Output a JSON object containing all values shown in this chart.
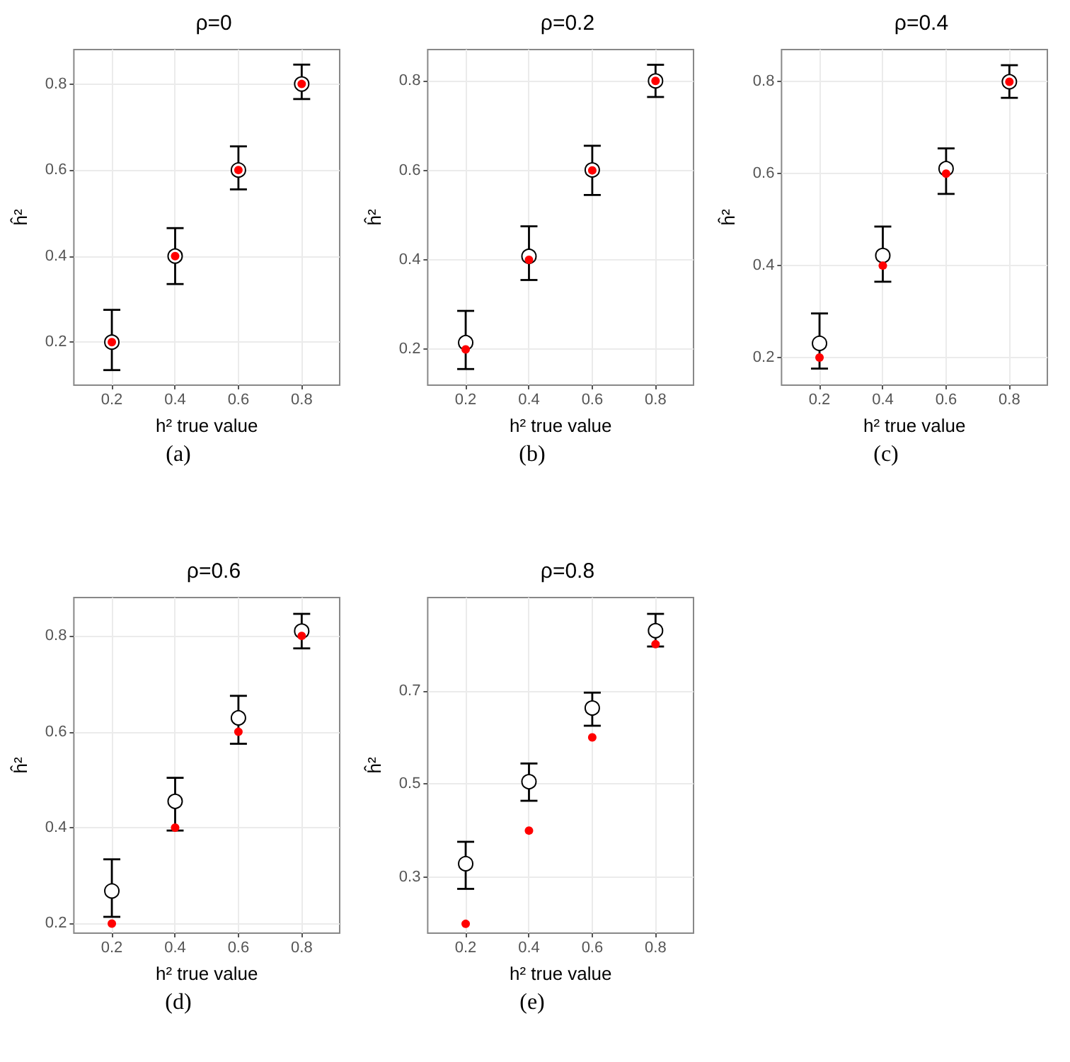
{
  "chart_data": [
    {
      "type": "scatter",
      "title": "ρ=0",
      "xlabel": "h² true value",
      "ylabel": "ĥ²",
      "annotations": [
        "(a)"
      ],
      "xlim": [
        0.08,
        0.92
      ],
      "xticks": [
        0.2,
        0.4,
        0.6,
        0.8
      ],
      "ylim": [
        0.1,
        0.88
      ],
      "yticks": [
        0.2,
        0.4,
        0.6,
        0.8
      ],
      "grid": true,
      "marker": "circle",
      "series": [
        {
          "color": "#ffffff",
          "x": [
            0.2,
            0.4,
            0.6,
            0.8
          ],
          "values": [
            0.2,
            0.4,
            0.6,
            0.8
          ],
          "errors": [
            [
              0.135,
              0.275
            ],
            [
              0.335,
              0.465
            ],
            [
              0.555,
              0.655
            ],
            [
              0.765,
              0.845
            ]
          ]
        },
        {
          "color": "#ff0000",
          "x": [
            0.2,
            0.4,
            0.6,
            0.8
          ],
          "values": [
            0.2,
            0.4,
            0.6,
            0.8
          ]
        }
      ]
    },
    {
      "type": "scatter",
      "title": "ρ=0.2",
      "xlabel": "h² true value",
      "ylabel": "ĥ²",
      "annotations": [
        "(b)"
      ],
      "xlim": [
        0.08,
        0.92
      ],
      "xticks": [
        0.2,
        0.4,
        0.6,
        0.8
      ],
      "ylim": [
        0.12,
        0.87
      ],
      "yticks": [
        0.2,
        0.4,
        0.6,
        0.8
      ],
      "grid": true,
      "marker": "circle",
      "series": [
        {
          "color": "#ffffff",
          "x": [
            0.2,
            0.4,
            0.6,
            0.8
          ],
          "values": [
            0.215,
            0.408,
            0.601,
            0.8
          ],
          "errors": [
            [
              0.156,
              0.286
            ],
            [
              0.355,
              0.475
            ],
            [
              0.545,
              0.655
            ],
            [
              0.764,
              0.836
            ]
          ]
        },
        {
          "color": "#ff0000",
          "x": [
            0.2,
            0.4,
            0.6,
            0.8
          ],
          "values": [
            0.2,
            0.4,
            0.6,
            0.8
          ]
        }
      ]
    },
    {
      "type": "scatter",
      "title": "ρ=0.4",
      "xlabel": "h² true value",
      "ylabel": "ĥ²",
      "annotations": [
        "(c)"
      ],
      "xlim": [
        0.08,
        0.92
      ],
      "xticks": [
        0.2,
        0.4,
        0.6,
        0.8
      ],
      "ylim": [
        0.14,
        0.87
      ],
      "yticks": [
        0.2,
        0.4,
        0.6,
        0.8
      ],
      "grid": true,
      "marker": "circle",
      "series": [
        {
          "color": "#ffffff",
          "x": [
            0.2,
            0.4,
            0.6,
            0.8
          ],
          "values": [
            0.231,
            0.422,
            0.611,
            0.8
          ],
          "errors": [
            [
              0.176,
              0.296
            ],
            [
              0.365,
              0.485
            ],
            [
              0.556,
              0.655
            ],
            [
              0.765,
              0.836
            ]
          ]
        },
        {
          "color": "#ff0000",
          "x": [
            0.2,
            0.4,
            0.6,
            0.8
          ],
          "values": [
            0.2,
            0.4,
            0.6,
            0.8
          ]
        }
      ]
    },
    {
      "type": "scatter",
      "title": "ρ=0.6",
      "xlabel": "h² true value",
      "ylabel": "ĥ²",
      "annotations": [
        "(d)"
      ],
      "xlim": [
        0.08,
        0.92
      ],
      "xticks": [
        0.2,
        0.4,
        0.6,
        0.8
      ],
      "ylim": [
        0.18,
        0.88
      ],
      "yticks": [
        0.2,
        0.4,
        0.6,
        0.8
      ],
      "grid": true,
      "marker": "circle",
      "series": [
        {
          "color": "#ffffff",
          "x": [
            0.2,
            0.4,
            0.6,
            0.8
          ],
          "values": [
            0.268,
            0.455,
            0.629,
            0.81
          ],
          "errors": [
            [
              0.214,
              0.334
            ],
            [
              0.394,
              0.504
            ],
            [
              0.575,
              0.675
            ],
            [
              0.774,
              0.846
            ]
          ]
        },
        {
          "color": "#ff0000",
          "x": [
            0.2,
            0.4,
            0.6,
            0.8
          ],
          "values": [
            0.2,
            0.4,
            0.6,
            0.8
          ]
        }
      ]
    },
    {
      "type": "scatter",
      "title": "ρ=0.8",
      "xlabel": "h² true value",
      "ylabel": "ĥ²",
      "annotations": [
        "(e)"
      ],
      "xlim": [
        0.08,
        0.92
      ],
      "xticks": [
        0.2,
        0.4,
        0.6,
        0.8
      ],
      "ylim": [
        0.18,
        0.9
      ],
      "yticks": [
        0.3,
        0.5,
        0.7
      ],
      "grid": true,
      "marker": "circle",
      "series": [
        {
          "color": "#ffffff",
          "x": [
            0.2,
            0.4,
            0.6,
            0.8
          ],
          "values": [
            0.329,
            0.505,
            0.663,
            0.829
          ],
          "errors": [
            [
              0.275,
              0.376
            ],
            [
              0.464,
              0.544
            ],
            [
              0.625,
              0.696
            ],
            [
              0.795,
              0.865
            ]
          ]
        },
        {
          "color": "#ff0000",
          "x": [
            0.2,
            0.4,
            0.6,
            0.8
          ],
          "values": [
            0.2,
            0.4,
            0.6,
            0.8
          ]
        }
      ]
    }
  ]
}
